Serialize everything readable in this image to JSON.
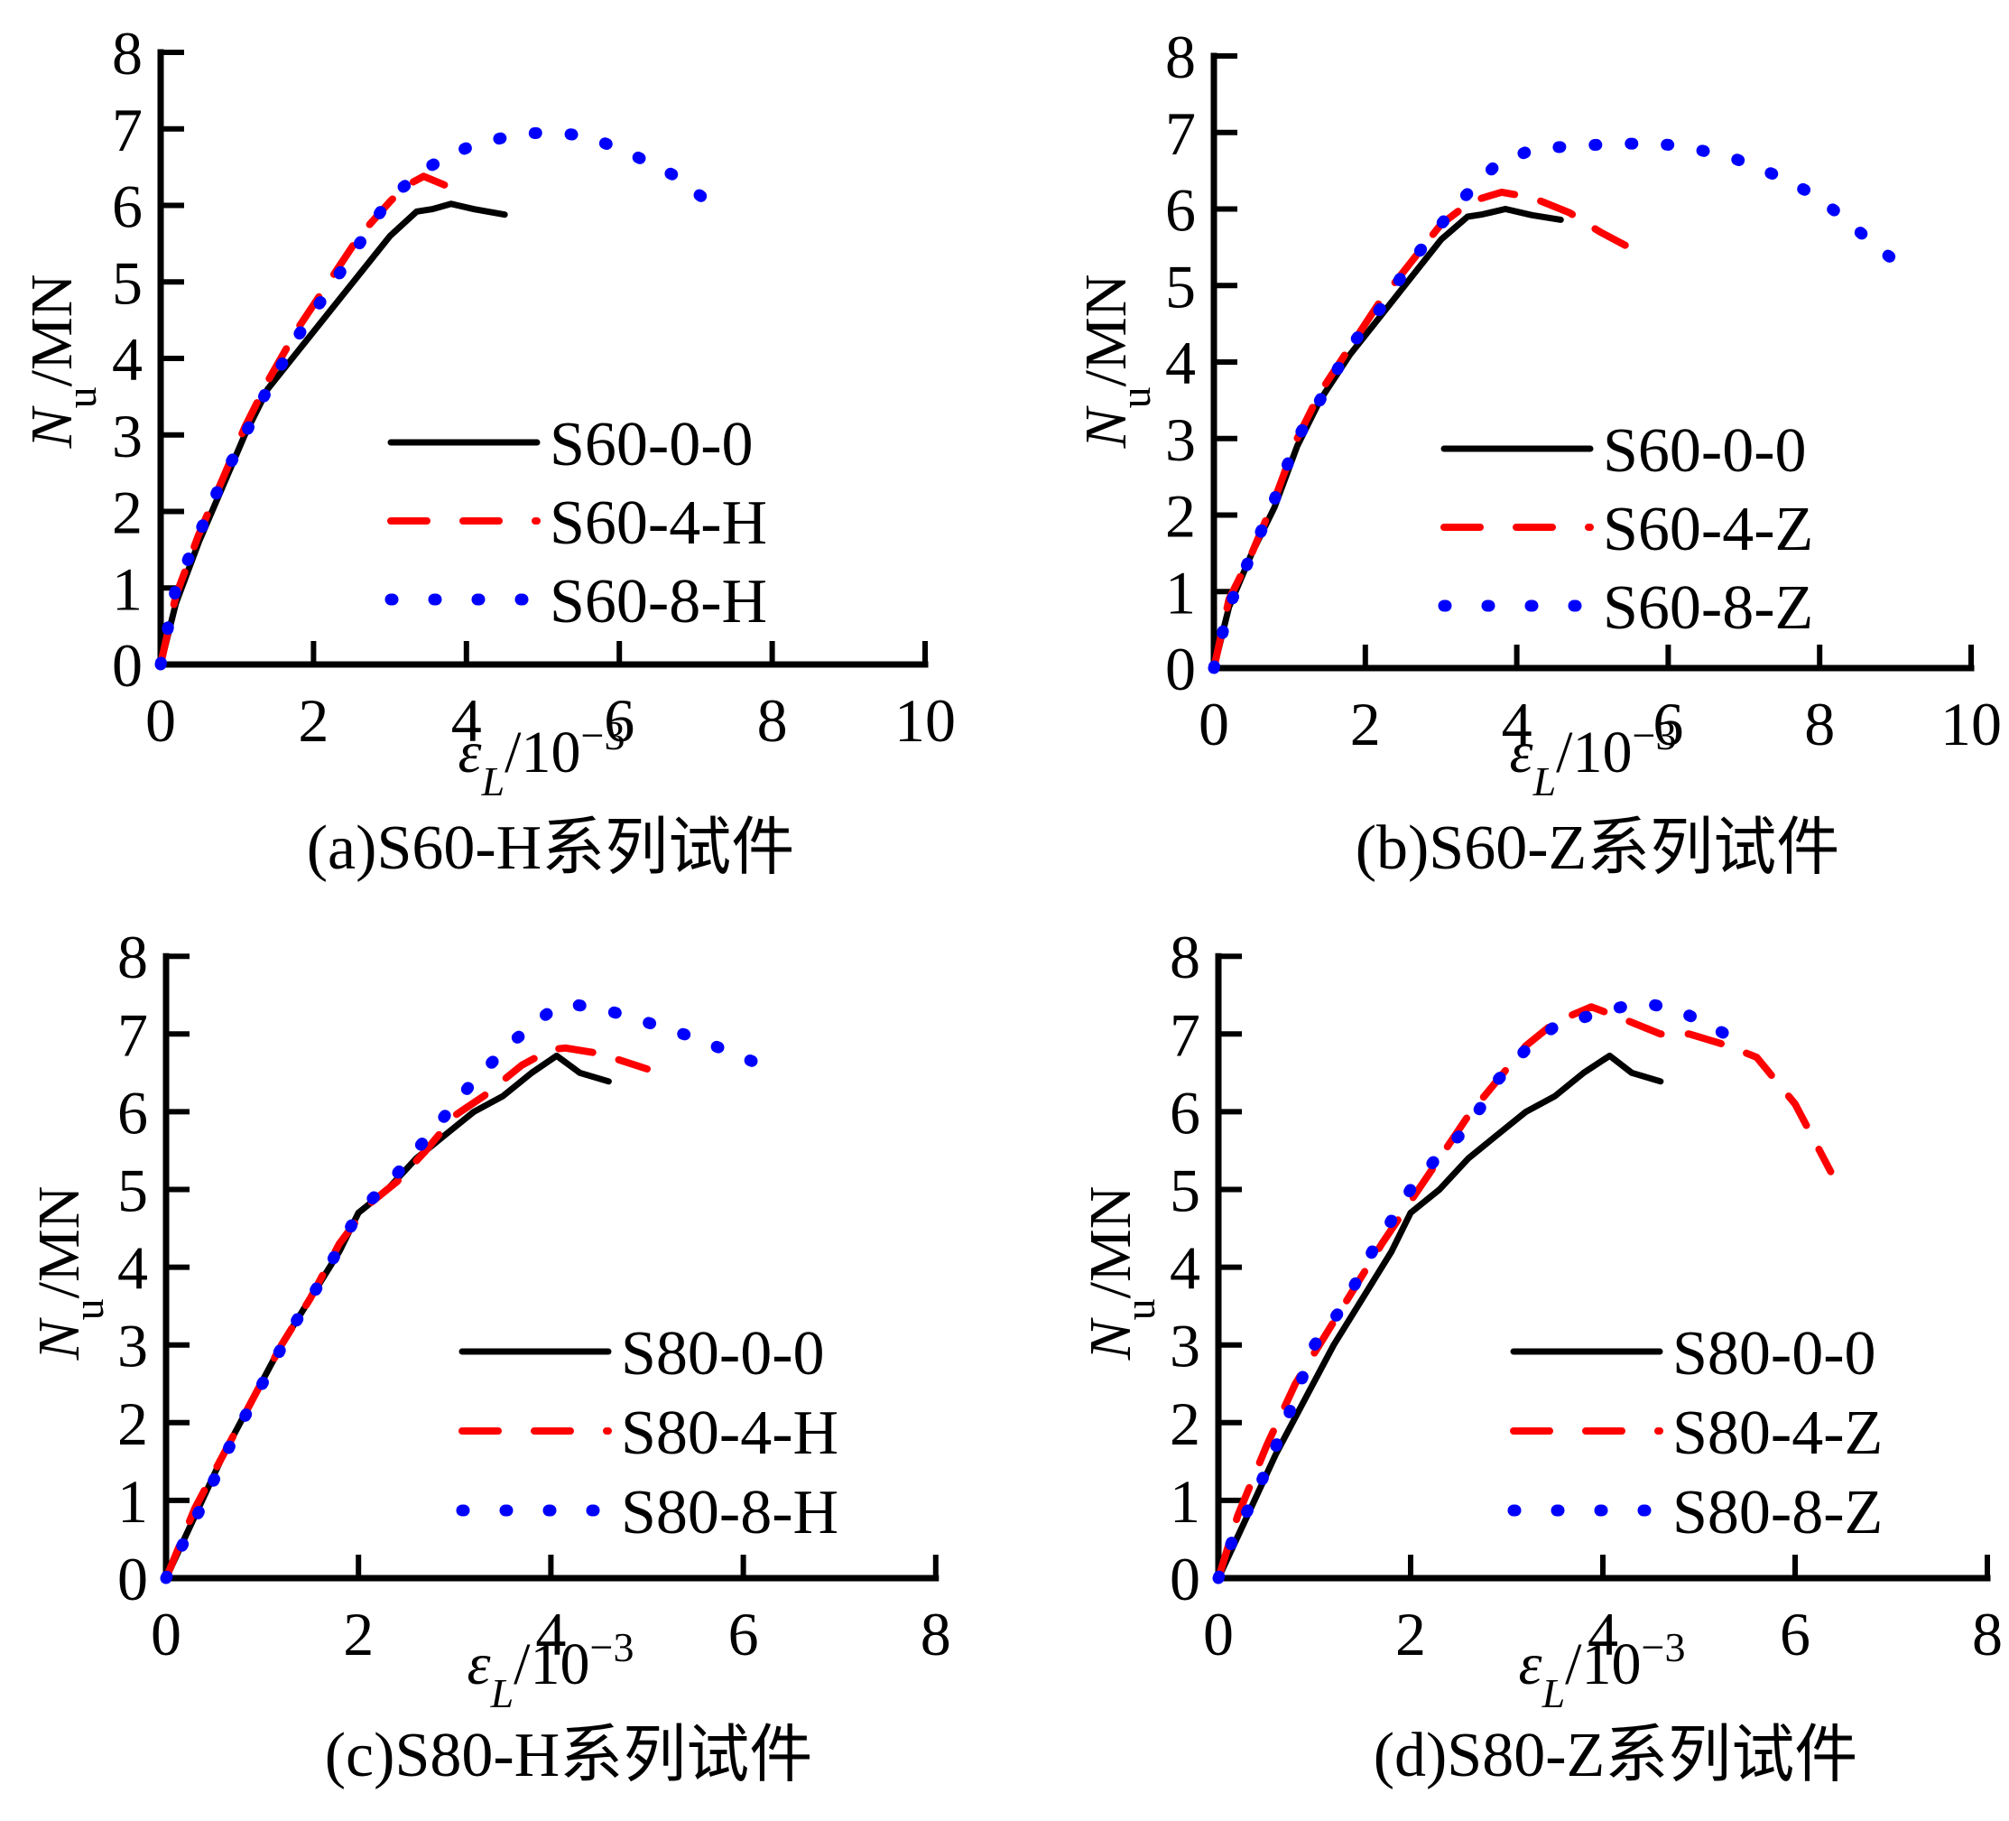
{
  "figure": {
    "panels": [
      {
        "id": "a",
        "caption": "(a)S60-H系列试件"
      },
      {
        "id": "b",
        "caption": "(b)S60-Z系列试件"
      },
      {
        "id": "c",
        "caption": "(c)S80-H系列试件"
      },
      {
        "id": "d",
        "caption": "(d)S80-Z系列试件"
      }
    ]
  },
  "colors": {
    "series_0": "#000000",
    "series_4": "#ff0000",
    "series_8": "#0000ff"
  },
  "chart_data": [
    {
      "type": "line",
      "title": "(a)S60-H系列试件",
      "xlabel": "εL/10^-3",
      "ylabel": "Nu/MN",
      "xlim": [
        0,
        10
      ],
      "ylim": [
        0,
        8
      ],
      "xticks": [
        "0",
        "2",
        "4",
        "6",
        "8",
        "10"
      ],
      "yticks": [
        "0",
        "1",
        "2",
        "3",
        "4",
        "5",
        "6",
        "7",
        "8"
      ],
      "grid": false,
      "legend_position": "center-right",
      "series": [
        {
          "name": "S60-0-0",
          "style": "solid",
          "color": "#000000",
          "points": [
            [
              0,
              0
            ],
            [
              0.2,
              0.8
            ],
            [
              0.5,
              1.6
            ],
            [
              0.8,
              2.3
            ],
            [
              1.1,
              3.0
            ],
            [
              1.4,
              3.6
            ],
            [
              1.8,
              4.1
            ],
            [
              2.2,
              4.6
            ],
            [
              2.6,
              5.1
            ],
            [
              3.0,
              5.6
            ],
            [
              3.35,
              5.92
            ],
            [
              3.55,
              5.95
            ],
            [
              3.8,
              6.02
            ],
            [
              4.1,
              5.95
            ],
            [
              4.5,
              5.88
            ]
          ]
        },
        {
          "name": "S60-4-H",
          "style": "dashed",
          "color": "#ff0000",
          "points": [
            [
              0,
              0
            ],
            [
              0.2,
              0.9
            ],
            [
              0.5,
              1.7
            ],
            [
              0.8,
              2.4
            ],
            [
              1.1,
              3.1
            ],
            [
              1.4,
              3.7
            ],
            [
              1.8,
              4.4
            ],
            [
              2.2,
              5.0
            ],
            [
              2.6,
              5.6
            ],
            [
              3.0,
              6.05
            ],
            [
              3.2,
              6.25
            ],
            [
              3.44,
              6.38
            ],
            [
              3.78,
              6.24
            ]
          ]
        },
        {
          "name": "S60-8-H",
          "style": "dotted",
          "color": "#0000ff",
          "points": [
            [
              0,
              0
            ],
            [
              0.2,
              1.0
            ],
            [
              0.5,
              1.7
            ],
            [
              0.8,
              2.4
            ],
            [
              1.1,
              3.0
            ],
            [
              1.4,
              3.6
            ],
            [
              1.8,
              4.3
            ],
            [
              2.2,
              4.9
            ],
            [
              2.6,
              5.5
            ],
            [
              3.0,
              6.1
            ],
            [
              3.5,
              6.5
            ],
            [
              4.0,
              6.75
            ],
            [
              4.6,
              6.92
            ],
            [
              5.1,
              6.96
            ],
            [
              5.6,
              6.9
            ],
            [
              6.2,
              6.65
            ],
            [
              6.7,
              6.4
            ],
            [
              7.2,
              6.02
            ]
          ]
        }
      ]
    },
    {
      "type": "line",
      "title": "(b)S60-Z系列试件",
      "xlabel": "εL/10^-3",
      "ylabel": "Nu/MN",
      "xlim": [
        0,
        10
      ],
      "ylim": [
        0,
        8
      ],
      "xticks": [
        "0",
        "2",
        "4",
        "6",
        "8",
        "10"
      ],
      "yticks": [
        "0",
        "1",
        "2",
        "3",
        "4",
        "5",
        "6",
        "7",
        "8"
      ],
      "grid": false,
      "legend_position": "center-right",
      "series": [
        {
          "name": "S60-0-0",
          "style": "solid",
          "color": "#000000",
          "points": [
            [
              0,
              0
            ],
            [
              0.2,
              0.8
            ],
            [
              0.5,
              1.5
            ],
            [
              0.8,
              2.1
            ],
            [
              1.1,
              2.9
            ],
            [
              1.4,
              3.5
            ],
            [
              1.8,
              4.1
            ],
            [
              2.2,
              4.6
            ],
            [
              2.6,
              5.1
            ],
            [
              3.0,
              5.6
            ],
            [
              3.35,
              5.9
            ],
            [
              3.55,
              5.93
            ],
            [
              3.85,
              6.0
            ],
            [
              4.2,
              5.92
            ],
            [
              4.58,
              5.86
            ]
          ]
        },
        {
          "name": "S60-4-Z",
          "style": "dashed",
          "color": "#ff0000",
          "points": [
            [
              0,
              0
            ],
            [
              0.2,
              0.9
            ],
            [
              0.5,
              1.5
            ],
            [
              0.8,
              2.2
            ],
            [
              1.1,
              3.0
            ],
            [
              1.4,
              3.6
            ],
            [
              1.8,
              4.2
            ],
            [
              2.2,
              4.8
            ],
            [
              2.6,
              5.3
            ],
            [
              3.0,
              5.8
            ],
            [
              3.4,
              6.1
            ],
            [
              3.8,
              6.22
            ],
            [
              4.2,
              6.15
            ],
            [
              4.7,
              5.95
            ],
            [
              5.1,
              5.7
            ],
            [
              5.5,
              5.49
            ]
          ]
        },
        {
          "name": "S60-8-Z",
          "style": "dotted",
          "color": "#0000ff",
          "points": [
            [
              0,
              0
            ],
            [
              0.2,
              0.8
            ],
            [
              0.5,
              1.5
            ],
            [
              0.8,
              2.2
            ],
            [
              1.1,
              3.0
            ],
            [
              1.4,
              3.5
            ],
            [
              1.8,
              4.2
            ],
            [
              2.2,
              4.7
            ],
            [
              2.6,
              5.3
            ],
            [
              3.0,
              5.8
            ],
            [
              3.3,
              6.15
            ],
            [
              3.7,
              6.55
            ],
            [
              4.2,
              6.78
            ],
            [
              4.7,
              6.82
            ],
            [
              5.25,
              6.85
            ],
            [
              5.83,
              6.86
            ],
            [
              6.3,
              6.8
            ],
            [
              6.9,
              6.65
            ],
            [
              7.4,
              6.45
            ],
            [
              7.9,
              6.2
            ],
            [
              8.3,
              5.9
            ],
            [
              8.7,
              5.55
            ],
            [
              9.15,
              5.2
            ]
          ]
        }
      ]
    },
    {
      "type": "line",
      "title": "(c)S80-H系列试件",
      "xlabel": "εL/10^-3",
      "ylabel": "Nu/MN",
      "xlim": [
        0,
        8
      ],
      "ylim": [
        0,
        8
      ],
      "xticks": [
        "0",
        "2",
        "4",
        "6",
        "8"
      ],
      "yticks": [
        "0",
        "1",
        "2",
        "3",
        "4",
        "5",
        "6",
        "7",
        "8"
      ],
      "grid": false,
      "legend_position": "center-right",
      "series": [
        {
          "name": "S80-0-0",
          "style": "solid",
          "color": "#000000",
          "points": [
            [
              0,
              0
            ],
            [
              0.3,
              0.8
            ],
            [
              0.6,
              1.6
            ],
            [
              0.9,
              2.3
            ],
            [
              1.2,
              3.0
            ],
            [
              1.5,
              3.6
            ],
            [
              1.8,
              4.2
            ],
            [
              2.0,
              4.7
            ],
            [
              2.3,
              5.0
            ],
            [
              2.6,
              5.4
            ],
            [
              2.9,
              5.7
            ],
            [
              3.2,
              6.0
            ],
            [
              3.5,
              6.2
            ],
            [
              3.8,
              6.5
            ],
            [
              4.06,
              6.72
            ],
            [
              4.3,
              6.5
            ],
            [
              4.6,
              6.39
            ]
          ]
        },
        {
          "name": "S80-4-H",
          "style": "dashed",
          "color": "#ff0000",
          "points": [
            [
              0,
              0
            ],
            [
              0.3,
              0.9
            ],
            [
              0.6,
              1.6
            ],
            [
              0.9,
              2.3
            ],
            [
              1.2,
              3.0
            ],
            [
              1.5,
              3.6
            ],
            [
              1.8,
              4.3
            ],
            [
              2.1,
              4.8
            ],
            [
              2.4,
              5.1
            ],
            [
              2.7,
              5.5
            ],
            [
              3.0,
              5.95
            ],
            [
              3.3,
              6.2
            ],
            [
              3.7,
              6.6
            ],
            [
              4.0,
              6.8
            ],
            [
              4.15,
              6.82
            ],
            [
              4.5,
              6.75
            ],
            [
              5.0,
              6.55
            ]
          ]
        },
        {
          "name": "S80-8-H",
          "style": "dotted",
          "color": "#0000ff",
          "points": [
            [
              0,
              0
            ],
            [
              0.2,
              0.5
            ],
            [
              0.4,
              1.0
            ],
            [
              0.7,
              1.8
            ],
            [
              1.0,
              2.5
            ],
            [
              1.3,
              3.2
            ],
            [
              1.6,
              3.8
            ],
            [
              2.0,
              4.7
            ],
            [
              2.4,
              5.2
            ],
            [
              2.8,
              5.8
            ],
            [
              3.2,
              6.4
            ],
            [
              3.6,
              6.9
            ],
            [
              4.0,
              7.3
            ],
            [
              4.2,
              7.39
            ],
            [
              4.6,
              7.3
            ],
            [
              5.0,
              7.15
            ],
            [
              5.5,
              6.95
            ],
            [
              6.15,
              6.62
            ]
          ]
        }
      ]
    },
    {
      "type": "line",
      "title": "(d)S80-Z系列试件",
      "xlabel": "εL/10^-3",
      "ylabel": "Nu/MN",
      "xlim": [
        0,
        8
      ],
      "ylim": [
        0,
        8
      ],
      "xticks": [
        "0",
        "2",
        "4",
        "6",
        "8"
      ],
      "yticks": [
        "0",
        "1",
        "2",
        "3",
        "4",
        "5",
        "6",
        "7",
        "8"
      ],
      "grid": false,
      "legend_position": "center-right",
      "series": [
        {
          "name": "S80-0-0",
          "style": "solid",
          "color": "#000000",
          "points": [
            [
              0,
              0
            ],
            [
              0.3,
              0.8
            ],
            [
              0.6,
              1.6
            ],
            [
              0.9,
              2.3
            ],
            [
              1.2,
              3.0
            ],
            [
              1.5,
              3.6
            ],
            [
              1.8,
              4.2
            ],
            [
              2.0,
              4.7
            ],
            [
              2.3,
              5.0
            ],
            [
              2.6,
              5.4
            ],
            [
              2.9,
              5.7
            ],
            [
              3.2,
              6.0
            ],
            [
              3.5,
              6.2
            ],
            [
              3.8,
              6.5
            ],
            [
              4.07,
              6.72
            ],
            [
              4.3,
              6.5
            ],
            [
              4.6,
              6.39
            ]
          ]
        },
        {
          "name": "S80-4-Z",
          "style": "dashed",
          "color": "#ff0000",
          "points": [
            [
              0,
              0
            ],
            [
              0.2,
              0.8
            ],
            [
              0.5,
              1.7
            ],
            [
              0.8,
              2.5
            ],
            [
              1.1,
              3.1
            ],
            [
              1.4,
              3.7
            ],
            [
              1.7,
              4.3
            ],
            [
              2.0,
              4.85
            ],
            [
              2.3,
              5.4
            ],
            [
              2.6,
              5.95
            ],
            [
              2.9,
              6.4
            ],
            [
              3.2,
              6.85
            ],
            [
              3.5,
              7.15
            ],
            [
              3.88,
              7.35
            ],
            [
              4.2,
              7.2
            ],
            [
              4.6,
              7.0
            ],
            [
              4.9,
              7.0
            ],
            [
              5.3,
              6.85
            ],
            [
              5.6,
              6.7
            ],
            [
              6.0,
              6.1
            ],
            [
              6.37,
              5.23
            ]
          ]
        },
        {
          "name": "S80-8-Z",
          "style": "dotted",
          "color": "#0000ff",
          "points": [
            [
              0,
              0
            ],
            [
              0.15,
              0.5
            ],
            [
              0.4,
              1.1
            ],
            [
              0.7,
              2.0
            ],
            [
              1.0,
              3.0
            ],
            [
              1.3,
              3.5
            ],
            [
              1.6,
              4.2
            ],
            [
              2.0,
              5.0
            ],
            [
              2.3,
              5.45
            ],
            [
              2.6,
              5.8
            ],
            [
              2.9,
              6.4
            ],
            [
              3.2,
              6.8
            ],
            [
              3.5,
              7.1
            ],
            [
              3.9,
              7.25
            ],
            [
              4.2,
              7.35
            ],
            [
              4.44,
              7.4
            ],
            [
              4.8,
              7.3
            ],
            [
              5.2,
              7.05
            ],
            [
              5.56,
              6.8
            ]
          ]
        }
      ]
    }
  ]
}
